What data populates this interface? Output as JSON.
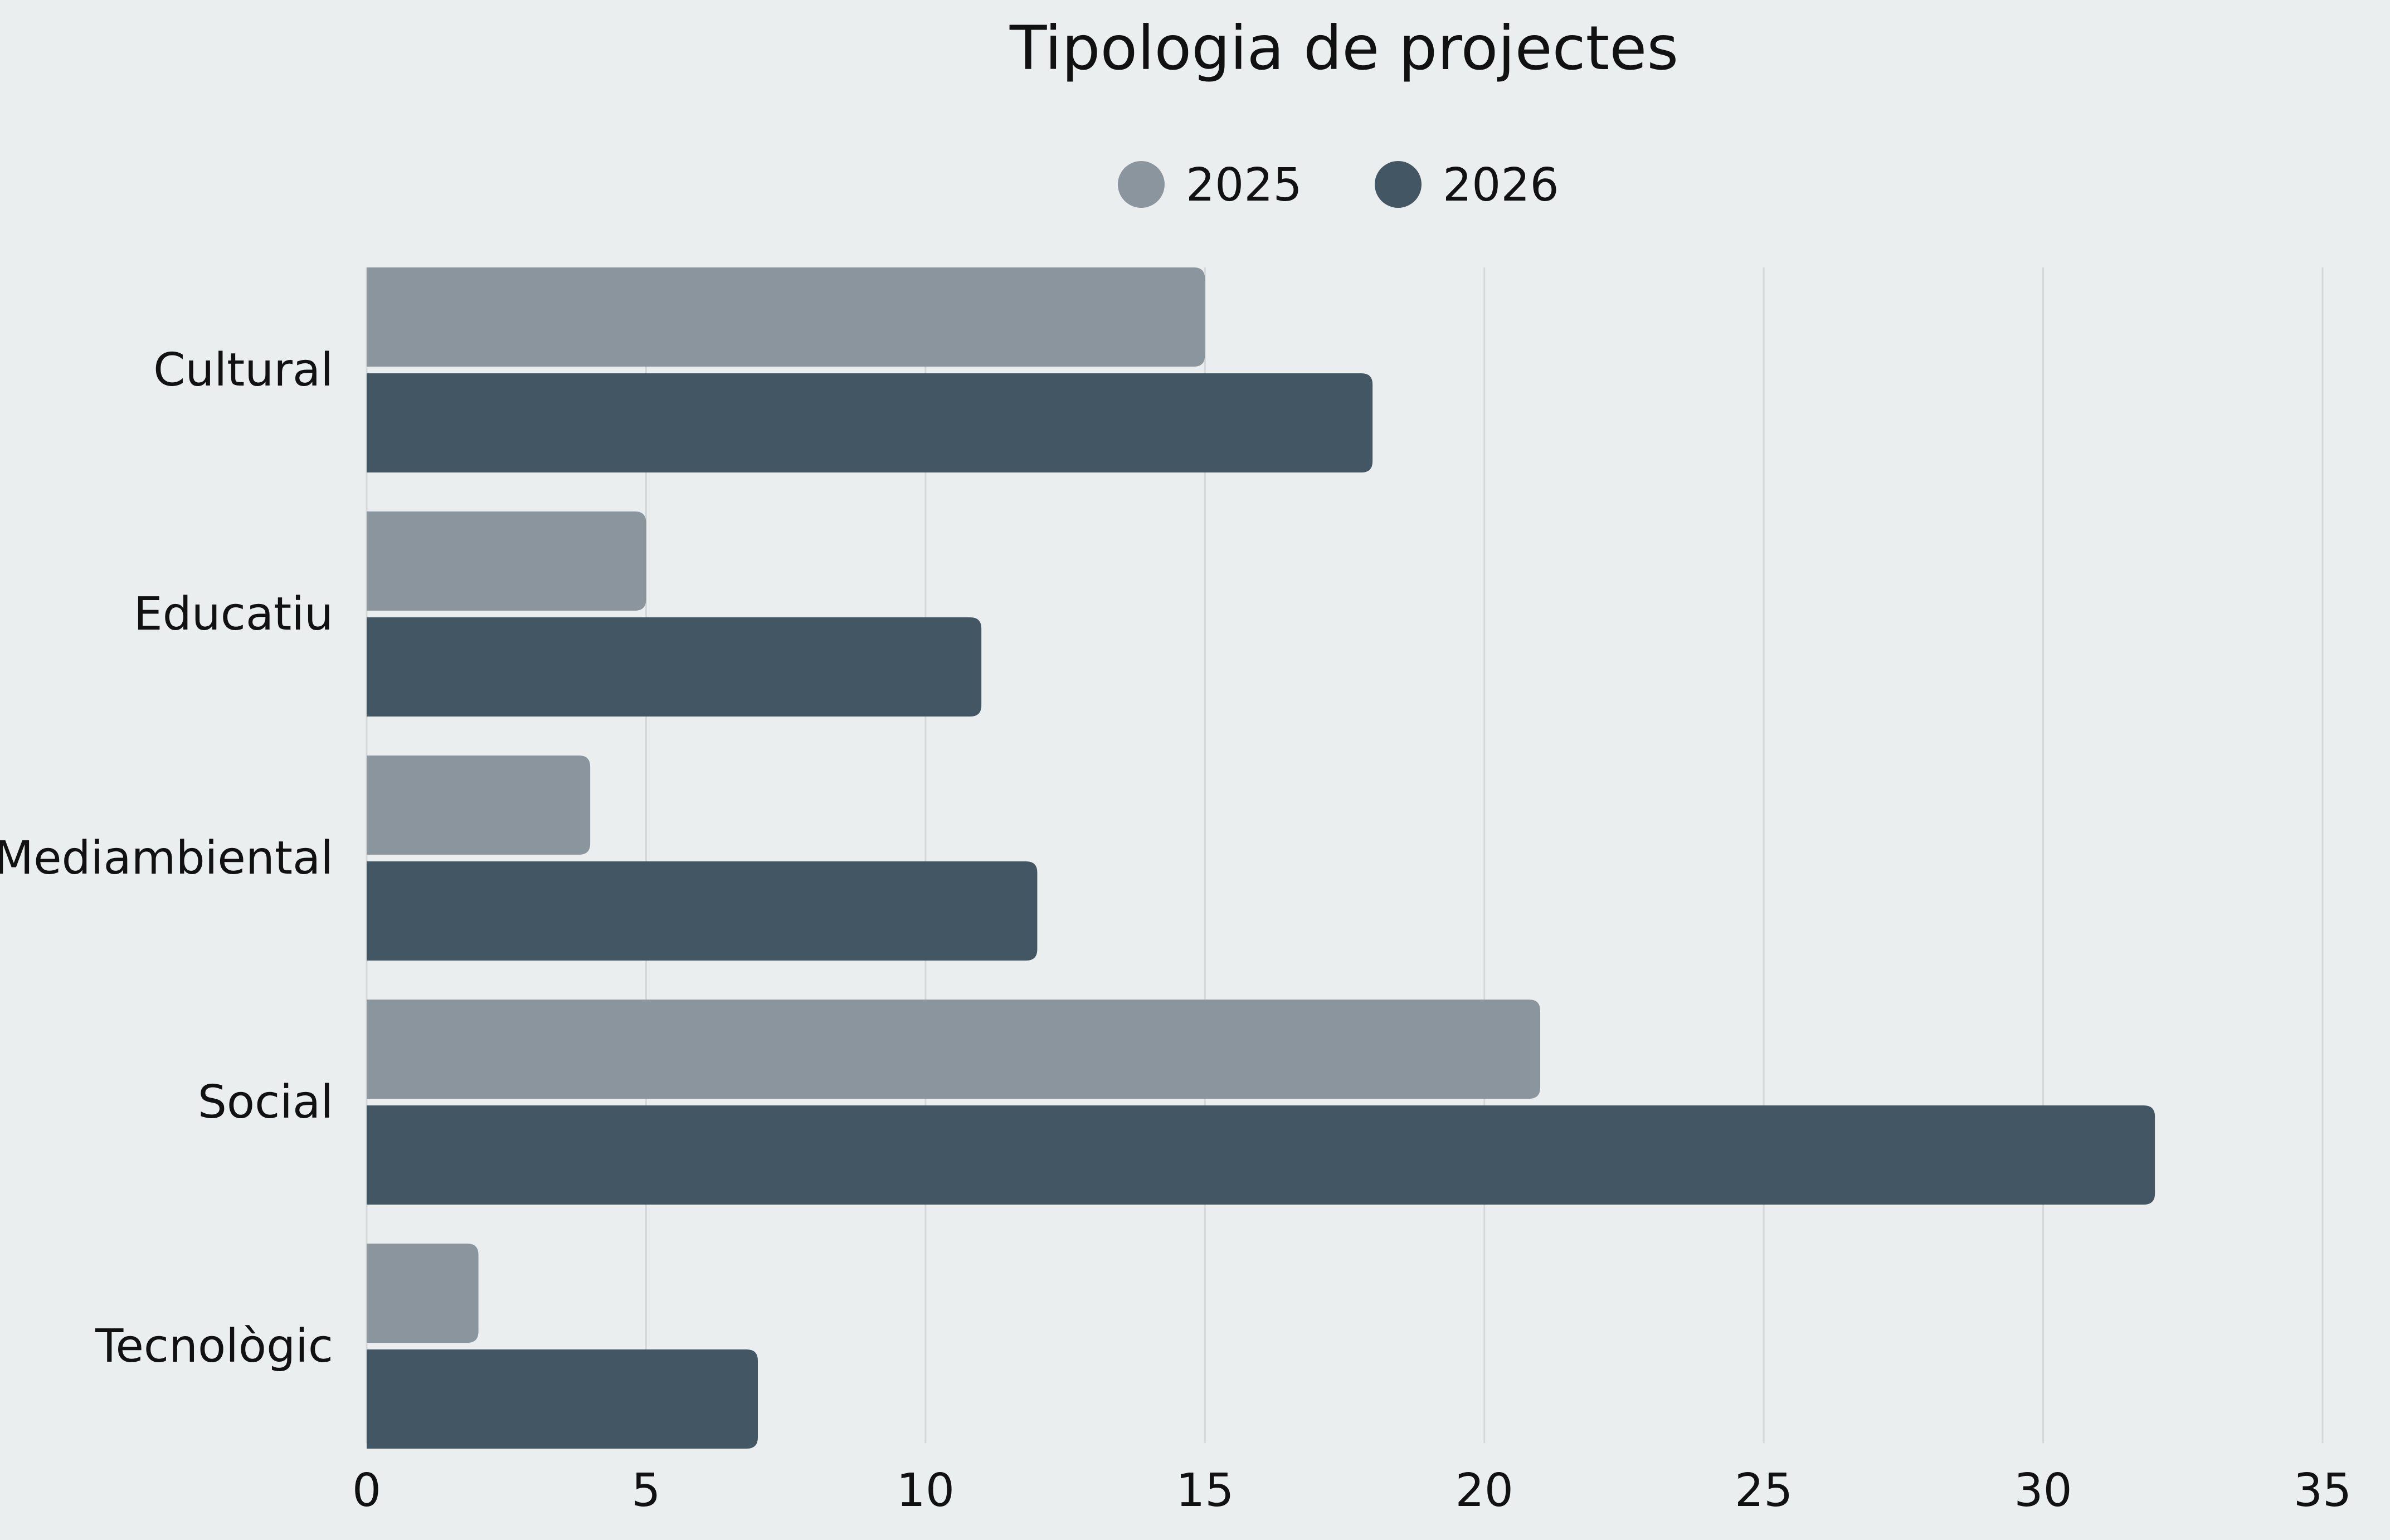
{
  "chart_data": {
    "type": "bar",
    "orientation": "horizontal",
    "title": "Tipologia de projectes",
    "xlabel": "",
    "ylabel": "",
    "categories": [
      "Cultural",
      "Educatiu",
      "Mediambiental",
      "Social",
      "Tecnològic"
    ],
    "series": [
      {
        "name": "2025",
        "color": "#8b959d",
        "values": [
          15,
          5,
          4,
          21,
          2
        ]
      },
      {
        "name": "2026",
        "color": "#435664",
        "values": [
          18,
          11,
          12,
          32,
          7
        ]
      }
    ],
    "xlim": [
      0,
      35
    ],
    "xticks": [
      0,
      5,
      10,
      15,
      20,
      25,
      30,
      35
    ],
    "grid": true,
    "legend_position": "top-center",
    "background": "#eaeeee"
  }
}
